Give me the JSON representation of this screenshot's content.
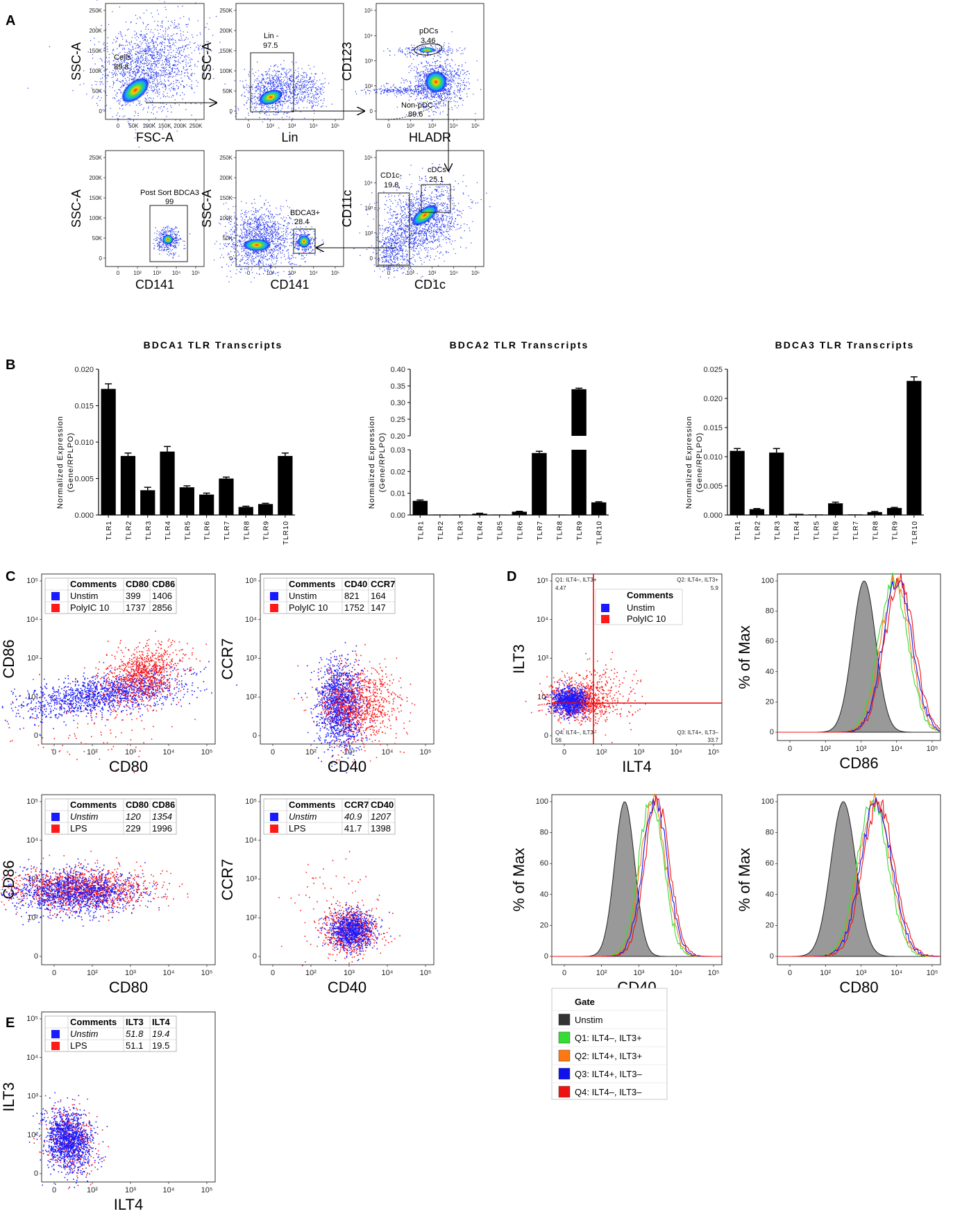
{
  "panel_letters": [
    "A",
    "B",
    "C",
    "D",
    "E"
  ],
  "panel_a": {
    "plots": [
      {
        "id": "a1",
        "xlabel": "FSC-A",
        "ylabel": "SSC-A",
        "xticks": [
          "0",
          "50K",
          "100K",
          "150K",
          "200K",
          "250K"
        ],
        "yticks": [
          "0",
          "50K",
          "100K",
          "150K",
          "200K",
          "250K"
        ],
        "gates": [
          {
            "label": "Cells",
            "value": "89.8"
          }
        ]
      },
      {
        "id": "a2",
        "xlabel": "Lin",
        "ylabel": "SSC-A",
        "xticks": [
          "0",
          "10²",
          "10³",
          "10⁴",
          "10⁵"
        ],
        "yticks": [
          "0",
          "50K",
          "100K",
          "150K",
          "200K",
          "250K"
        ],
        "gates": [
          {
            "label": "Lin -",
            "value": "97.5"
          }
        ]
      },
      {
        "id": "a3",
        "xlabel": "HLADR",
        "ylabel": "CD123",
        "xticks": [
          "0",
          "10²",
          "10³",
          "10⁴",
          "10⁵"
        ],
        "yticks": [
          "0",
          "10²",
          "10³",
          "10⁴",
          "10⁵"
        ],
        "gates": [
          {
            "label": "pDCs",
            "value": "3.46"
          },
          {
            "label": "Non-pDC",
            "value": "89.6"
          }
        ]
      },
      {
        "id": "a4",
        "xlabel": "CD141",
        "ylabel": "SSC-A",
        "xticks": [
          "0",
          "10²",
          "10³",
          "10⁴",
          "10⁵"
        ],
        "yticks": [
          "0",
          "50K",
          "100K",
          "150K",
          "200K",
          "250K"
        ],
        "gates": [
          {
            "label": "Post Sort BDCA3",
            "value": "99"
          }
        ]
      },
      {
        "id": "a5",
        "xlabel": "CD141",
        "ylabel": "SSC-A",
        "xticks": [
          "0",
          "10²",
          "10³",
          "10⁴",
          "10⁵"
        ],
        "yticks": [
          "0",
          "50K",
          "100K",
          "150K",
          "200K",
          "250K"
        ],
        "gates": [
          {
            "label": "BDCA3+",
            "value": "28.4"
          }
        ]
      },
      {
        "id": "a6",
        "xlabel": "CD1c",
        "ylabel": "CD11c",
        "xticks": [
          "0",
          "10²",
          "10³",
          "10⁴",
          "10⁵"
        ],
        "yticks": [
          "0",
          "10²",
          "10³",
          "10⁴",
          "10⁵"
        ],
        "gates": [
          {
            "label": "CD1c-",
            "value": "19.8"
          },
          {
            "label": "cDCs",
            "value": "25.1"
          }
        ]
      }
    ]
  },
  "chart_data": [
    {
      "type": "bar",
      "title": "BDCA1 TLR Transcripts",
      "ylabel": "Normalized Expression (Gene/RPLPO)",
      "categories": [
        "TLR1",
        "TLR2",
        "TLR3",
        "TLR4",
        "TLR5",
        "TLR6",
        "TLR7",
        "TLR8",
        "TLR9",
        "TLR10"
      ],
      "values": [
        0.0173,
        0.0081,
        0.0034,
        0.0087,
        0.0038,
        0.0028,
        0.005,
        0.0011,
        0.0015,
        0.0081
      ],
      "errors": [
        0.0007,
        0.0004,
        0.0004,
        0.0007,
        0.0002,
        0.0002,
        0.0002,
        0.0001,
        0.0001,
        0.0004
      ],
      "ylim": [
        0,
        0.02
      ],
      "yticks": [
        "0.000",
        "0.005",
        "0.010",
        "0.015",
        "0.020"
      ]
    },
    {
      "type": "bar",
      "title": "BDCA2 TLR Transcripts",
      "ylabel": "Normalized Expression (Gene/RPLPO)",
      "categories": [
        "TLR1",
        "TLR2",
        "TLR3",
        "TLR4",
        "TLR5",
        "TLR6",
        "TLR7",
        "TLR8",
        "TLR9",
        "TLR10"
      ],
      "values": [
        0.0065,
        0.0002,
        0.0002,
        0.0006,
        0.0002,
        0.0015,
        0.0285,
        0.0002,
        0.34,
        0.0058
      ],
      "errors": [
        0.0004,
        0,
        0,
        0.0002,
        0,
        0.0002,
        0.0008,
        0,
        0.003,
        0.0003
      ],
      "ylim": [
        0,
        0.4
      ],
      "axis_break": [
        0.03,
        0.2
      ],
      "yticks_low": [
        "0.00",
        "0.01",
        "0.02",
        "0.03"
      ],
      "yticks_high": [
        "0.20",
        "0.25",
        "0.30",
        "0.35",
        "0.40"
      ]
    },
    {
      "type": "bar",
      "title": "BDCA3 TLR Transcripts",
      "ylabel": "Normalized Expression (Gene/RPLPO)",
      "categories": [
        "TLR1",
        "TLR2",
        "TLR3",
        "TLR4",
        "TLR5",
        "TLR6",
        "TLR7",
        "TLR8",
        "TLR9",
        "TLR10"
      ],
      "values": [
        0.011,
        0.001,
        0.0107,
        0.0002,
        0.0001,
        0.002,
        0.0001,
        0.0005,
        0.0012,
        0.023
      ],
      "errors": [
        0.0004,
        0.0001,
        0.0007,
        0,
        0,
        0.0002,
        0,
        0.0001,
        0.0001,
        0.0007
      ],
      "ylim": [
        0,
        0.025
      ],
      "yticks": [
        "0.000",
        "0.005",
        "0.010",
        "0.015",
        "0.020",
        "0.025"
      ]
    },
    {
      "type": "scatter",
      "id": "c1",
      "xlabel": "CD80",
      "ylabel": "CD86",
      "xticks": [
        "0",
        "10²",
        "10³",
        "10⁴",
        "10⁵"
      ],
      "yticks": [
        "0",
        "10²",
        "10³",
        "10⁴",
        "10⁵"
      ],
      "legend": {
        "headers": [
          "Comments",
          "CD80",
          "CD86"
        ],
        "rows": [
          [
            "Unstim",
            "399",
            "1406"
          ],
          [
            "PolyIC 10",
            "1737",
            "2856"
          ]
        ],
        "italic": false
      }
    },
    {
      "type": "scatter",
      "id": "c2",
      "xlabel": "CD40",
      "ylabel": "CCR7",
      "xticks": [
        "0",
        "10²",
        "10³",
        "10⁴",
        "10⁵"
      ],
      "yticks": [
        "0",
        "10²",
        "10³",
        "10⁴",
        "10⁵"
      ],
      "legend": {
        "headers": [
          "Comments",
          "CD40",
          "CCR7"
        ],
        "rows": [
          [
            "Unstim",
            "821",
            "164"
          ],
          [
            "PolyIC 10",
            "1752",
            "147"
          ]
        ],
        "italic": false
      }
    },
    {
      "type": "scatter",
      "id": "c3",
      "xlabel": "CD80",
      "ylabel": "CD86",
      "xticks": [
        "0",
        "10²",
        "10³",
        "10⁴",
        "10⁵"
      ],
      "yticks": [
        "0",
        "10²",
        "10³",
        "10⁴",
        "10⁵"
      ],
      "legend": {
        "headers": [
          "Comments",
          "CD80",
          "CD86"
        ],
        "rows": [
          [
            "Unstim",
            "120",
            "1354"
          ],
          [
            "LPS",
            "229",
            "1996"
          ]
        ],
        "italic": true
      }
    },
    {
      "type": "scatter",
      "id": "c4",
      "xlabel": "CD40",
      "ylabel": "CCR7",
      "xticks": [
        "0",
        "10²",
        "10³",
        "10⁴",
        "10⁵"
      ],
      "yticks": [
        "0",
        "10²",
        "10³",
        "10⁴",
        "10⁵"
      ],
      "legend": {
        "headers": [
          "Comments",
          "CCR7",
          "CD40"
        ],
        "rows": [
          [
            "Unstim",
            "40.9",
            "1207"
          ],
          [
            "LPS",
            "41.7",
            "1398"
          ]
        ],
        "italic": true
      }
    },
    {
      "type": "scatter",
      "id": "d1",
      "xlabel": "ILT4",
      "ylabel": "ILT3",
      "xticks": [
        "0",
        "10²",
        "10³",
        "10⁴",
        "10⁵"
      ],
      "yticks": [
        "0",
        "10²",
        "10³",
        "10⁴",
        "10⁵"
      ],
      "quadrants": [
        {
          "label": "Q1: ILT4–, ILT3+",
          "value": "4.47"
        },
        {
          "label": "Q2: ILT4+, ILT3+",
          "value": "5.9"
        },
        {
          "label": "Q3: ILT4+, ILT3–",
          "value": "33.7"
        },
        {
          "label": "Q4: ILT4–, ILT3–",
          "value": "56"
        }
      ],
      "legend": {
        "header": "Comments",
        "rows": [
          "Unstim",
          "PolyIC 10"
        ]
      }
    },
    {
      "type": "histogram",
      "id": "d2",
      "xlabel": "CD86",
      "ylabel": "% of Max",
      "xticks": [
        "0",
        "10²",
        "10³",
        "10⁴",
        "10⁵"
      ],
      "yticks": [
        "0",
        "20",
        "40",
        "60",
        "80",
        "100"
      ]
    },
    {
      "type": "histogram",
      "id": "d3",
      "xlabel": "CD40",
      "ylabel": "% of Max",
      "xticks": [
        "0",
        "10²",
        "10³",
        "10⁴",
        "10⁵"
      ],
      "yticks": [
        "0",
        "20",
        "40",
        "60",
        "80",
        "100"
      ]
    },
    {
      "type": "histogram",
      "id": "d4",
      "xlabel": "CD80",
      "ylabel": "% of Max",
      "xticks": [
        "0",
        "10²",
        "10³",
        "10⁴",
        "10⁵"
      ],
      "yticks": [
        "0",
        "20",
        "40",
        "60",
        "80",
        "100"
      ]
    },
    {
      "type": "scatter",
      "id": "e1",
      "xlabel": "ILT4",
      "ylabel": "ILT3",
      "xticks": [
        "0",
        "10²",
        "10³",
        "10⁴",
        "10⁵"
      ],
      "yticks": [
        "0",
        "10²",
        "10³",
        "10⁴",
        "10⁵"
      ],
      "legend": {
        "headers": [
          "Comments",
          "ILT3",
          "ILT4"
        ],
        "rows": [
          [
            "Unstim",
            "51.8",
            "19.4"
          ],
          [
            "LPS",
            "51.1",
            "19.5"
          ]
        ],
        "italic": true
      }
    }
  ],
  "gate_legend": {
    "title": "Gate",
    "items": [
      {
        "label": "Unstim",
        "color": "#333333"
      },
      {
        "label": "Q1: ILT4–, ILT3+",
        "color": "#33dd33"
      },
      {
        "label": "Q2: ILT4+, ILT3+",
        "color": "#ff7711"
      },
      {
        "label": "Q3: ILT4+, ILT3–",
        "color": "#1111ee"
      },
      {
        "label": "Q4: ILT4–, ILT3–",
        "color": "#ee1111"
      }
    ]
  },
  "colors": {
    "unstim": "#1a1aff",
    "stim": "#ff1a1a",
    "bar": "#000000"
  }
}
